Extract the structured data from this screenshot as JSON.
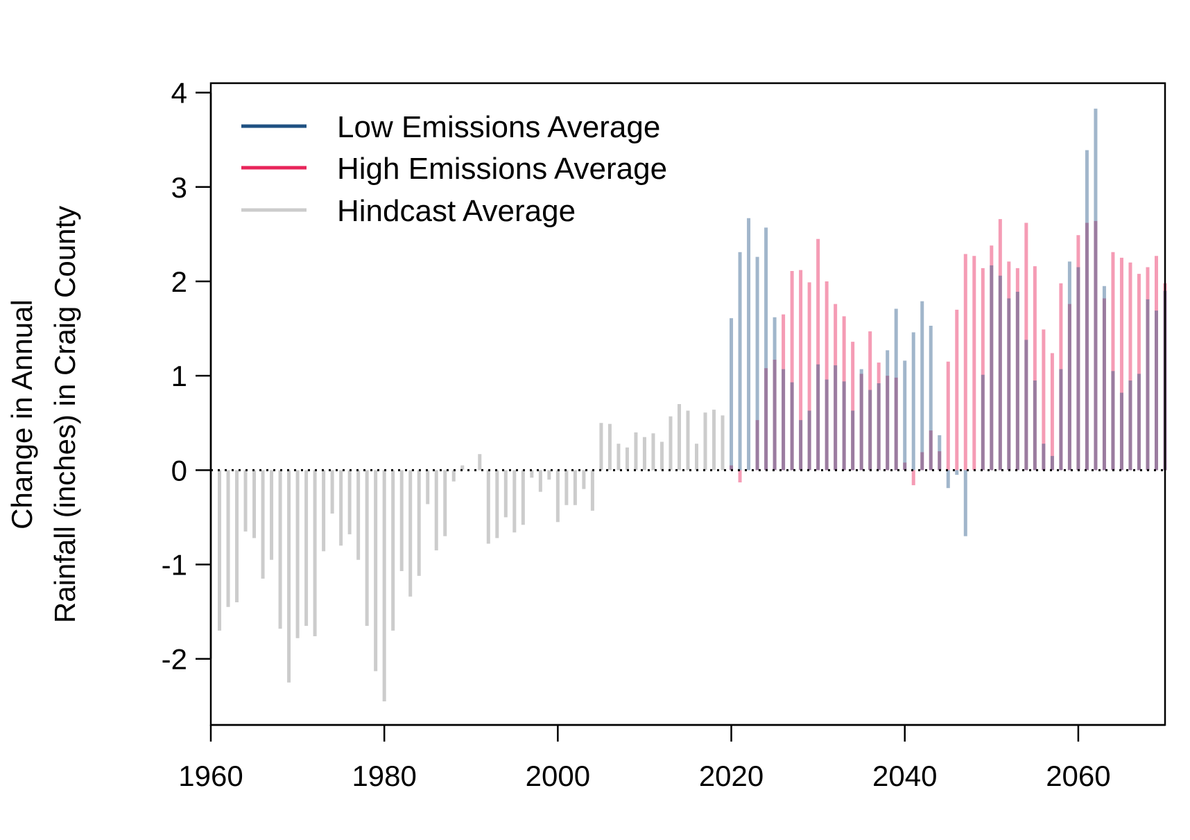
{
  "chart_data": {
    "type": "bar",
    "title": "",
    "ylabel_lines": [
      "Change in Annual",
      "Rainfall (inches) in Craig County"
    ],
    "xlabel": "",
    "xlim": [
      1960,
      2070
    ],
    "ylim": [
      -2.7,
      4.1
    ],
    "x_ticks": [
      1960,
      1980,
      2000,
      2020,
      2040,
      2060
    ],
    "y_ticks": [
      -2,
      -1,
      0,
      1,
      2,
      3,
      4
    ],
    "reference_line": 0,
    "grid": false,
    "legend_position": "top-left",
    "colors": {
      "low": "#1f5182",
      "high": "#e8245a",
      "hindcast": "#cccccc"
    },
    "legend": [
      {
        "key": "low",
        "label": "Low Emissions Average"
      },
      {
        "key": "high",
        "label": "High Emissions Average"
      },
      {
        "key": "hindcast",
        "label": "Hindcast Average"
      }
    ],
    "series": [
      {
        "name": "Hindcast Average",
        "key": "hindcast",
        "x": [
          1961,
          1962,
          1963,
          1964,
          1965,
          1966,
          1967,
          1968,
          1969,
          1970,
          1971,
          1972,
          1973,
          1974,
          1975,
          1976,
          1977,
          1978,
          1979,
          1980,
          1981,
          1982,
          1983,
          1984,
          1985,
          1986,
          1987,
          1988,
          1989,
          1990,
          1991,
          1992,
          1993,
          1994,
          1995,
          1996,
          1997,
          1998,
          1999,
          2000,
          2001,
          2002,
          2003,
          2004,
          2005,
          2006,
          2007,
          2008,
          2009,
          2010,
          2011,
          2012,
          2013,
          2014,
          2015,
          2016,
          2017,
          2018,
          2019
        ],
        "values": [
          -1.7,
          -1.45,
          -1.4,
          -0.65,
          -0.72,
          -1.15,
          -0.95,
          -1.68,
          -2.25,
          -1.78,
          -1.65,
          -1.76,
          -0.86,
          -0.46,
          -0.8,
          -0.68,
          -0.95,
          -1.65,
          -2.13,
          -2.45,
          -1.7,
          -1.07,
          -1.34,
          -1.12,
          -0.36,
          -0.85,
          -0.7,
          -0.12,
          0.05,
          0.0,
          0.17,
          -0.78,
          -0.72,
          -0.5,
          -0.66,
          -0.58,
          -0.08,
          -0.23,
          -0.1,
          -0.55,
          -0.37,
          -0.37,
          -0.2,
          -0.43,
          0.5,
          0.49,
          0.28,
          0.24,
          0.4,
          0.35,
          0.39,
          0.3,
          0.57,
          0.7,
          0.63,
          0.28,
          0.61,
          0.64,
          0.58
        ]
      },
      {
        "name": "High Emissions Average",
        "key": "high",
        "x": [
          2020,
          2021,
          2022,
          2023,
          2024,
          2025,
          2026,
          2027,
          2028,
          2029,
          2030,
          2031,
          2032,
          2033,
          2034,
          2035,
          2036,
          2037,
          2038,
          2039,
          2040,
          2041,
          2042,
          2043,
          2044,
          2045,
          2046,
          2047,
          2048,
          2049,
          2050,
          2051,
          2052,
          2053,
          2054,
          2055,
          2056,
          2057,
          2058,
          2059,
          2060,
          2061,
          2062,
          2063,
          2064,
          2065,
          2066,
          2067,
          2068,
          2069,
          2070
        ],
        "values": [
          0.05,
          -0.13,
          0.0,
          0.53,
          1.08,
          1.17,
          1.65,
          2.11,
          2.12,
          1.99,
          2.45,
          2.0,
          1.76,
          1.63,
          1.36,
          1.02,
          1.47,
          1.14,
          1.0,
          0.98,
          0.08,
          -0.16,
          0.19,
          0.42,
          0.2,
          1.15,
          1.7,
          2.29,
          2.27,
          2.14,
          2.38,
          2.66,
          2.21,
          2.14,
          2.62,
          2.16,
          1.49,
          1.24,
          1.98,
          1.76,
          2.49,
          2.62,
          2.64,
          1.82,
          2.31,
          2.25,
          2.2,
          2.08,
          2.15,
          2.27,
          1.98
        ]
      },
      {
        "name": "Low Emissions Average",
        "key": "low",
        "x": [
          2020,
          2021,
          2022,
          2023,
          2024,
          2025,
          2026,
          2027,
          2028,
          2029,
          2030,
          2031,
          2032,
          2033,
          2034,
          2035,
          2036,
          2037,
          2038,
          2039,
          2040,
          2041,
          2042,
          2043,
          2044,
          2045,
          2046,
          2047,
          2048,
          2049,
          2050,
          2051,
          2052,
          2053,
          2054,
          2055,
          2056,
          2057,
          2058,
          2059,
          2060,
          2061,
          2062,
          2063,
          2064,
          2065,
          2066,
          2067,
          2068,
          2069,
          2070
        ],
        "values": [
          1.61,
          2.31,
          2.67,
          2.26,
          2.57,
          1.62,
          1.07,
          0.93,
          0.53,
          0.63,
          1.12,
          0.96,
          1.11,
          0.94,
          0.63,
          1.07,
          0.85,
          0.92,
          1.27,
          1.71,
          1.16,
          1.46,
          1.79,
          1.53,
          0.37,
          -0.19,
          -0.05,
          -0.7,
          0.0,
          1.01,
          2.17,
          2.06,
          1.82,
          1.89,
          1.38,
          0.95,
          0.28,
          0.15,
          1.07,
          2.21,
          2.15,
          3.39,
          3.83,
          1.95,
          1.05,
          0.82,
          0.95,
          1.02,
          1.81,
          1.69,
          1.9
        ]
      }
    ]
  }
}
